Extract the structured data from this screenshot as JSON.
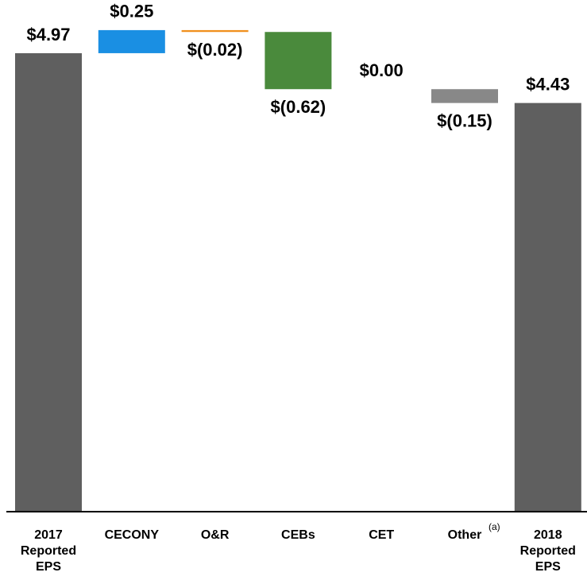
{
  "chart_data": {
    "type": "waterfall",
    "categories": [
      "2017 Reported EPS",
      "CECONY",
      "O&R",
      "CEBs",
      "CET",
      "Other",
      "2018 Reported EPS"
    ],
    "values": [
      4.97,
      0.25,
      -0.02,
      -0.62,
      0,
      -0.15,
      4.43
    ],
    "value_labels": [
      "$4.97",
      "$0.25",
      "$(0.02)",
      "$(0.62)",
      "$0.00",
      "$(0.15)",
      "$4.43"
    ],
    "colors": [
      "#5f5f5f",
      "#1a8fe3",
      "#f0901e",
      "#4a8a3c",
      "#7f7f7f",
      "#888888",
      "#5f5f5f"
    ],
    "category_note": "(a)",
    "ylim": [
      0,
      5.5
    ]
  }
}
